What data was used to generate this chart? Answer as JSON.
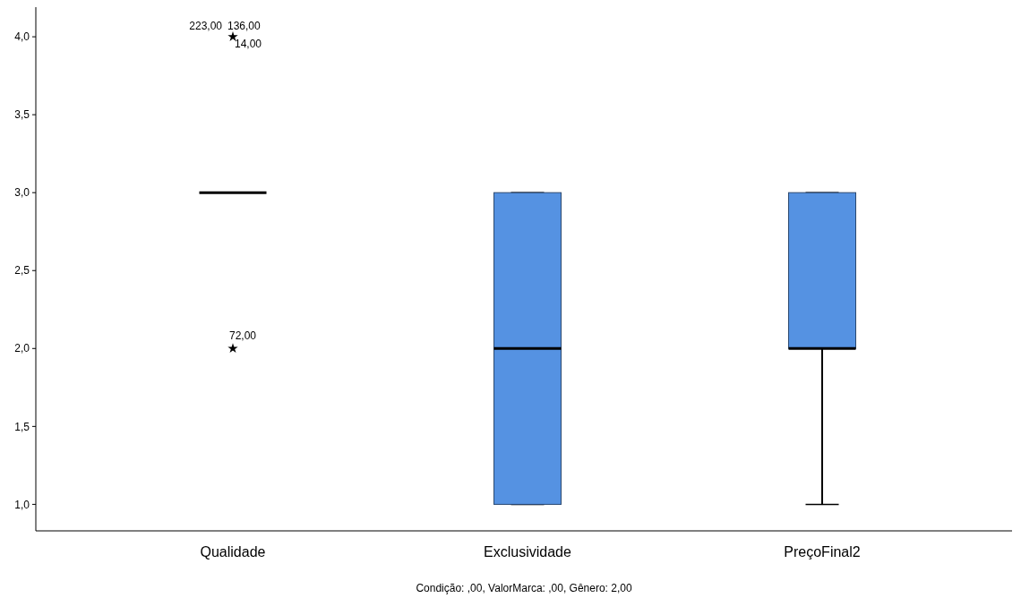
{
  "chart_data": {
    "type": "box",
    "categories": [
      "Qualidade",
      "Exclusividade",
      "PreçoFinal2"
    ],
    "boxes": [
      {
        "low": 3,
        "q1": 3,
        "median": 3,
        "q3": 3,
        "high": 3,
        "outliers": [
          4,
          2
        ]
      },
      {
        "low": 1,
        "q1": 1,
        "median": 2,
        "q3": 3,
        "high": 3
      },
      {
        "low": 1,
        "q1": 2,
        "median": 2,
        "q3": 3,
        "high": 3
      }
    ],
    "colors": [
      "#000000",
      "#5592e2",
      "#5592e2"
    ],
    "marker": "star",
    "grid": false,
    "ylim": [
      0.83,
      4.19
    ],
    "yticks": [
      {
        "value": 1,
        "label": "1,0"
      },
      {
        "value": 1.5,
        "label": "1,5"
      },
      {
        "value": 2,
        "label": "2,0"
      },
      {
        "value": 2.5,
        "label": "2,5"
      },
      {
        "value": 3,
        "label": "3,0"
      },
      {
        "value": 3.5,
        "label": "3,5"
      },
      {
        "value": 4,
        "label": "4,0"
      }
    ],
    "annotations": [
      "223,00",
      "136,00",
      "14,00",
      "72,00",
      "Condição: ,00, ValorMarca: ,00, Gênero: 2,00"
    ]
  }
}
